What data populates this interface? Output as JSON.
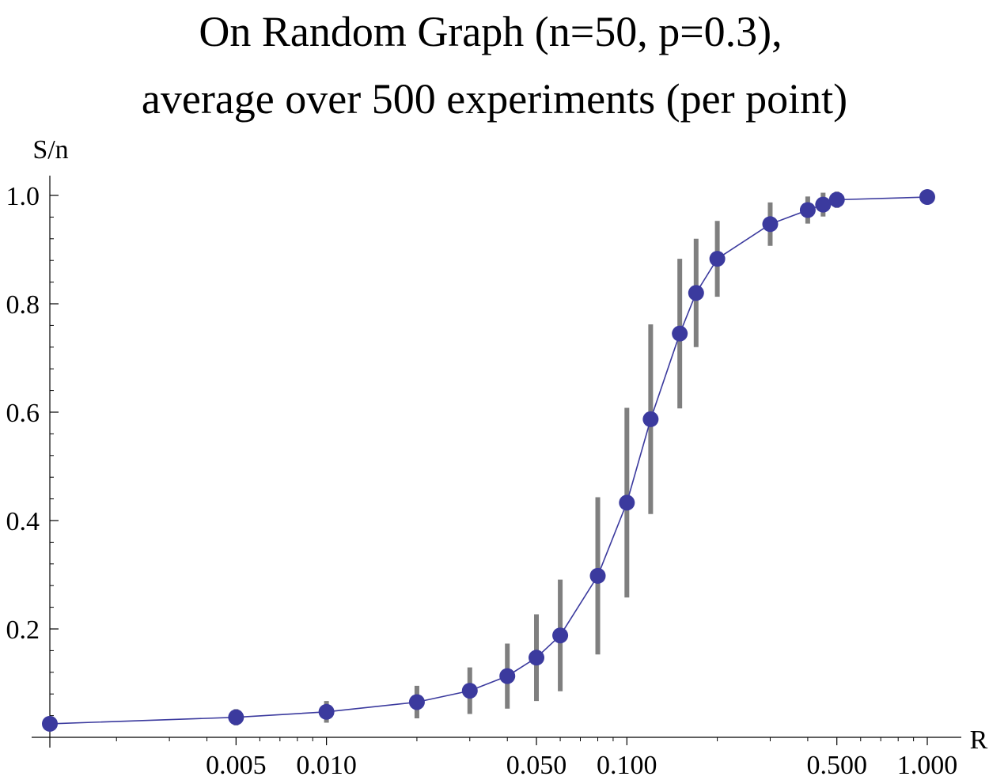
{
  "chart_data": {
    "type": "scatter",
    "title_lines": [
      "On Random Graph (n=50, p=0.3),",
      "average over 500 experiments (per point)"
    ],
    "xlabel": "R",
    "ylabel": "S/n",
    "x_scale": "log",
    "xlim": [
      0.0012,
      1.0
    ],
    "ylim": [
      0.0,
      1.0
    ],
    "x_ticks": [
      {
        "value": 0.005,
        "label": "0.005"
      },
      {
        "value": 0.01,
        "label": "0.010"
      },
      {
        "value": 0.05,
        "label": "0.050"
      },
      {
        "value": 0.1,
        "label": "0.100"
      },
      {
        "value": 0.5,
        "label": "0.500"
      },
      {
        "value": 1.0,
        "label": "1.000"
      }
    ],
    "y_ticks": [
      {
        "value": 0.2,
        "label": "0.2"
      },
      {
        "value": 0.4,
        "label": "0.4"
      },
      {
        "value": 0.6,
        "label": "0.6"
      },
      {
        "value": 0.8,
        "label": "0.8"
      },
      {
        "value": 1.0,
        "label": "1.0"
      }
    ],
    "grid": false,
    "colors": {
      "points": "#3b3a9e",
      "line": "#3b3a9e",
      "error_bars": "#7f7f7f"
    },
    "series": [
      {
        "points": [
          {
            "x": 0.0012,
            "y": 0.025,
            "err": 0.0
          },
          {
            "x": 0.005,
            "y": 0.037,
            "err": 0.015
          },
          {
            "x": 0.01,
            "y": 0.047,
            "err": 0.02
          },
          {
            "x": 0.02,
            "y": 0.065,
            "err": 0.03
          },
          {
            "x": 0.03,
            "y": 0.086,
            "err": 0.043
          },
          {
            "x": 0.04,
            "y": 0.113,
            "err": 0.06
          },
          {
            "x": 0.05,
            "y": 0.147,
            "err": 0.08
          },
          {
            "x": 0.06,
            "y": 0.188,
            "err": 0.103
          },
          {
            "x": 0.08,
            "y": 0.298,
            "err": 0.145
          },
          {
            "x": 0.1,
            "y": 0.433,
            "err": 0.175
          },
          {
            "x": 0.12,
            "y": 0.587,
            "err": 0.175
          },
          {
            "x": 0.15,
            "y": 0.745,
            "err": 0.138
          },
          {
            "x": 0.17,
            "y": 0.82,
            "err": 0.1
          },
          {
            "x": 0.2,
            "y": 0.883,
            "err": 0.07
          },
          {
            "x": 0.3,
            "y": 0.947,
            "err": 0.04
          },
          {
            "x": 0.4,
            "y": 0.973,
            "err": 0.025
          },
          {
            "x": 0.45,
            "y": 0.983,
            "err": 0.022
          },
          {
            "x": 0.5,
            "y": 0.992,
            "err": 0.015
          },
          {
            "x": 1.0,
            "y": 0.997,
            "err": 0.0
          }
        ]
      }
    ]
  }
}
